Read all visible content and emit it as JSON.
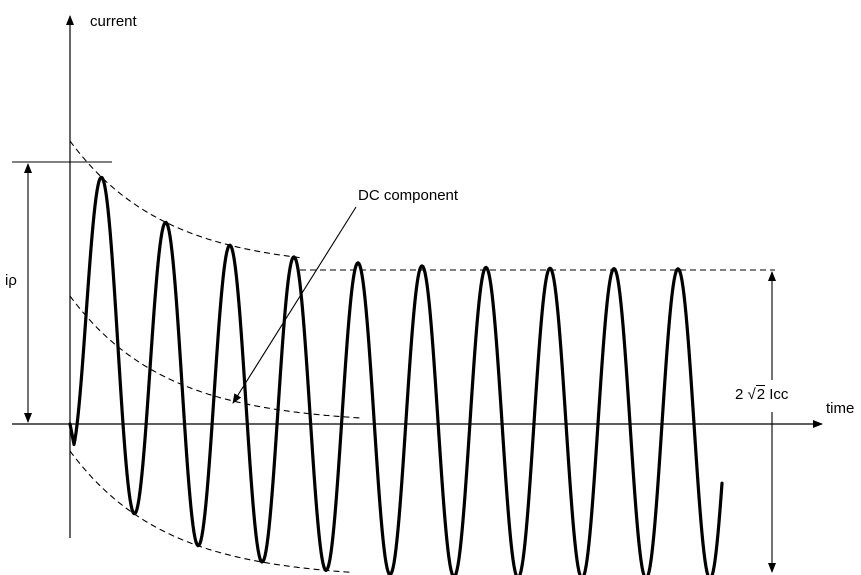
{
  "labels": {
    "y_axis": "current",
    "x_axis": "time",
    "peak": "iρ",
    "dc_component": "DC component",
    "steady": {
      "prefix": "2",
      "radical": "√",
      "radicand": "2",
      "suffix": "Icc"
    }
  },
  "colors": {
    "line": "#000000",
    "background": "#ffffff"
  }
}
